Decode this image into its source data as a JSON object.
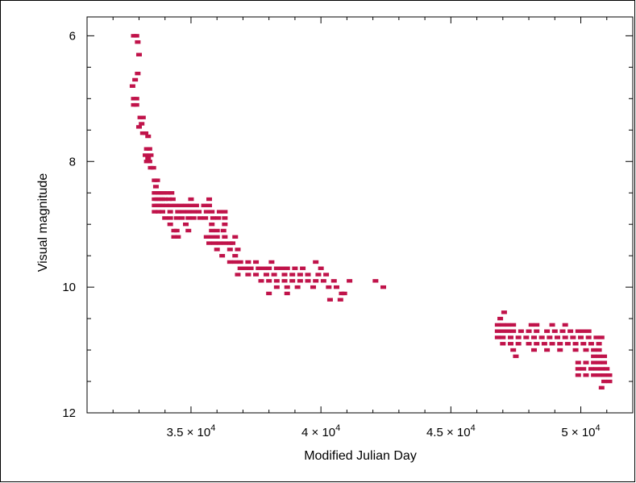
{
  "chart_data": {
    "type": "scatter",
    "xlabel": "Modified Julian Day",
    "ylabel": "Visual magnitude",
    "xlim": [
      31000,
      52000
    ],
    "ylim": [
      12,
      5.7
    ],
    "y_inverted": true,
    "grid": false,
    "marker_color": "#c0134a",
    "frame_color": "#000000",
    "xticks": [
      {
        "value": 35000,
        "mantissa": "3.5",
        "exponent": "4"
      },
      {
        "value": 40000,
        "mantissa": "4",
        "exponent": "4"
      },
      {
        "value": 45000,
        "mantissa": "4.5",
        "exponent": "4"
      },
      {
        "value": 50000,
        "mantissa": "5",
        "exponent": "4"
      }
    ],
    "yticks": [
      {
        "value": 6,
        "label": "6"
      },
      {
        "value": 8,
        "label": "8"
      },
      {
        "value": 10,
        "label": "10"
      },
      {
        "value": 12,
        "label": "12"
      }
    ],
    "series": [
      {
        "points": [
          [
            32800,
            6.0
          ],
          [
            32900,
            6.0
          ],
          [
            32950,
            6.1
          ],
          [
            33000,
            6.3
          ],
          [
            32850,
            6.7
          ],
          [
            32950,
            6.6
          ],
          [
            32750,
            6.8
          ],
          [
            32800,
            7.0
          ],
          [
            32900,
            7.0
          ],
          [
            32800,
            7.1
          ],
          [
            32900,
            7.1
          ],
          [
            33050,
            7.3
          ],
          [
            33150,
            7.3
          ],
          [
            33100,
            7.4
          ],
          [
            33000,
            7.45
          ],
          [
            33150,
            7.55
          ],
          [
            33250,
            7.55
          ],
          [
            33350,
            7.6
          ],
          [
            33300,
            7.8
          ],
          [
            33400,
            7.8
          ],
          [
            33250,
            7.9
          ],
          [
            33350,
            7.95
          ],
          [
            33450,
            7.9
          ],
          [
            33300,
            8.0
          ],
          [
            33400,
            8.0
          ],
          [
            33450,
            8.1
          ],
          [
            33550,
            8.1
          ],
          [
            33600,
            8.3
          ],
          [
            33700,
            8.3
          ],
          [
            33650,
            8.4
          ],
          [
            33750,
            8.5
          ],
          [
            33850,
            8.5
          ],
          [
            33950,
            8.5
          ],
          [
            34100,
            8.5
          ],
          [
            34250,
            8.5
          ],
          [
            33600,
            8.5
          ],
          [
            33600,
            8.6
          ],
          [
            33700,
            8.6
          ],
          [
            33800,
            8.6
          ],
          [
            33900,
            8.6
          ],
          [
            34000,
            8.6
          ],
          [
            34150,
            8.6
          ],
          [
            34300,
            8.6
          ],
          [
            35000,
            8.6
          ],
          [
            35700,
            8.6
          ],
          [
            33600,
            8.7
          ],
          [
            33700,
            8.7
          ],
          [
            33800,
            8.7
          ],
          [
            33900,
            8.7
          ],
          [
            34050,
            8.7
          ],
          [
            34200,
            8.7
          ],
          [
            34400,
            8.7
          ],
          [
            34600,
            8.7
          ],
          [
            34800,
            8.7
          ],
          [
            35000,
            8.7
          ],
          [
            35200,
            8.7
          ],
          [
            35500,
            8.7
          ],
          [
            35700,
            8.7
          ],
          [
            33600,
            8.8
          ],
          [
            33750,
            8.8
          ],
          [
            33900,
            8.8
          ],
          [
            34200,
            8.8
          ],
          [
            34500,
            8.8
          ],
          [
            34700,
            8.8
          ],
          [
            34900,
            8.8
          ],
          [
            35100,
            8.8
          ],
          [
            35300,
            8.8
          ],
          [
            35600,
            8.8
          ],
          [
            35800,
            8.8
          ],
          [
            36100,
            8.8
          ],
          [
            36300,
            8.8
          ],
          [
            34000,
            8.9
          ],
          [
            34200,
            8.9
          ],
          [
            34450,
            8.9
          ],
          [
            34650,
            8.9
          ],
          [
            34900,
            8.9
          ],
          [
            35100,
            8.9
          ],
          [
            35350,
            8.9
          ],
          [
            35550,
            8.9
          ],
          [
            35850,
            8.9
          ],
          [
            36050,
            8.9
          ],
          [
            36300,
            8.9
          ],
          [
            34200,
            9.0
          ],
          [
            34800,
            9.0
          ],
          [
            34900,
            9.1
          ],
          [
            35800,
            9.0
          ],
          [
            36300,
            9.0
          ],
          [
            34350,
            9.1
          ],
          [
            34450,
            9.1
          ],
          [
            35800,
            9.1
          ],
          [
            36000,
            9.1
          ],
          [
            36250,
            9.1
          ],
          [
            34350,
            9.2
          ],
          [
            34500,
            9.2
          ],
          [
            35600,
            9.2
          ],
          [
            35800,
            9.2
          ],
          [
            36000,
            9.2
          ],
          [
            36300,
            9.2
          ],
          [
            36700,
            9.2
          ],
          [
            36500,
            9.3
          ],
          [
            35700,
            9.3
          ],
          [
            35900,
            9.3
          ],
          [
            36100,
            9.3
          ],
          [
            36300,
            9.3
          ],
          [
            36600,
            9.3
          ],
          [
            36000,
            9.4
          ],
          [
            36500,
            9.4
          ],
          [
            36800,
            9.4
          ],
          [
            36200,
            9.5
          ],
          [
            36700,
            9.5
          ],
          [
            36500,
            9.6
          ],
          [
            36700,
            9.6
          ],
          [
            36900,
            9.6
          ],
          [
            37200,
            9.6
          ],
          [
            37500,
            9.6
          ],
          [
            38100,
            9.6
          ],
          [
            36900,
            9.7
          ],
          [
            37100,
            9.7
          ],
          [
            37300,
            9.7
          ],
          [
            37600,
            9.7
          ],
          [
            37800,
            9.7
          ],
          [
            38000,
            9.7
          ],
          [
            38300,
            9.7
          ],
          [
            38500,
            9.7
          ],
          [
            38700,
            9.7
          ],
          [
            39000,
            9.7
          ],
          [
            39300,
            9.7
          ],
          [
            39800,
            9.6
          ],
          [
            40000,
            9.7
          ],
          [
            36800,
            9.8
          ],
          [
            37200,
            9.8
          ],
          [
            37500,
            9.8
          ],
          [
            37900,
            9.8
          ],
          [
            38200,
            9.8
          ],
          [
            38600,
            9.8
          ],
          [
            38900,
            9.8
          ],
          [
            39200,
            9.8
          ],
          [
            39500,
            9.8
          ],
          [
            39900,
            9.8
          ],
          [
            40200,
            9.8
          ],
          [
            37700,
            9.9
          ],
          [
            38000,
            9.9
          ],
          [
            38300,
            9.9
          ],
          [
            38600,
            9.9
          ],
          [
            38900,
            9.9
          ],
          [
            39200,
            9.9
          ],
          [
            39500,
            9.9
          ],
          [
            39800,
            9.9
          ],
          [
            40100,
            9.9
          ],
          [
            40500,
            9.9
          ],
          [
            41100,
            9.9
          ],
          [
            38300,
            10.0
          ],
          [
            38700,
            10.0
          ],
          [
            39100,
            10.0
          ],
          [
            39700,
            10.0
          ],
          [
            40300,
            10.0
          ],
          [
            40600,
            10.0
          ],
          [
            38000,
            10.1
          ],
          [
            38700,
            10.1
          ],
          [
            40800,
            10.1
          ],
          [
            40900,
            10.1
          ],
          [
            40350,
            10.2
          ],
          [
            40750,
            10.2
          ],
          [
            42100,
            9.9
          ],
          [
            42400,
            10.0
          ],
          [
            46900,
            10.5
          ],
          [
            47050,
            10.4
          ],
          [
            46800,
            10.6
          ],
          [
            47000,
            10.6
          ],
          [
            47200,
            10.6
          ],
          [
            47400,
            10.6
          ],
          [
            48100,
            10.6
          ],
          [
            48300,
            10.6
          ],
          [
            48900,
            10.6
          ],
          [
            49400,
            10.6
          ],
          [
            46800,
            10.7
          ],
          [
            47000,
            10.7
          ],
          [
            47200,
            10.7
          ],
          [
            47400,
            10.7
          ],
          [
            47700,
            10.7
          ],
          [
            48000,
            10.7
          ],
          [
            48300,
            10.7
          ],
          [
            48700,
            10.7
          ],
          [
            49000,
            10.7
          ],
          [
            49300,
            10.7
          ],
          [
            49600,
            10.7
          ],
          [
            49900,
            10.7
          ],
          [
            50100,
            10.7
          ],
          [
            50300,
            10.7
          ],
          [
            46800,
            10.8
          ],
          [
            47000,
            10.8
          ],
          [
            47300,
            10.8
          ],
          [
            47600,
            10.8
          ],
          [
            47900,
            10.8
          ],
          [
            48200,
            10.8
          ],
          [
            48500,
            10.8
          ],
          [
            48800,
            10.8
          ],
          [
            49100,
            10.8
          ],
          [
            49400,
            10.8
          ],
          [
            49700,
            10.8
          ],
          [
            50000,
            10.8
          ],
          [
            50300,
            10.8
          ],
          [
            50600,
            10.8
          ],
          [
            50800,
            10.8
          ],
          [
            47000,
            10.9
          ],
          [
            47300,
            10.9
          ],
          [
            47600,
            10.9
          ],
          [
            48000,
            10.9
          ],
          [
            48300,
            10.9
          ],
          [
            48600,
            10.9
          ],
          [
            48900,
            10.9
          ],
          [
            49200,
            10.9
          ],
          [
            49500,
            10.9
          ],
          [
            49800,
            10.9
          ],
          [
            50100,
            10.9
          ],
          [
            50400,
            10.9
          ],
          [
            50700,
            10.9
          ],
          [
            47400,
            11.0
          ],
          [
            48200,
            11.0
          ],
          [
            48700,
            11.0
          ],
          [
            49200,
            11.0
          ],
          [
            49800,
            11.0
          ],
          [
            50200,
            11.0
          ],
          [
            50500,
            11.0
          ],
          [
            50700,
            11.0
          ],
          [
            47500,
            11.1
          ],
          [
            50500,
            11.1
          ],
          [
            50700,
            11.1
          ],
          [
            50900,
            11.1
          ],
          [
            49900,
            11.2
          ],
          [
            50200,
            11.2
          ],
          [
            50500,
            11.2
          ],
          [
            50700,
            11.2
          ],
          [
            50900,
            11.2
          ],
          [
            49900,
            11.3
          ],
          [
            50100,
            11.3
          ],
          [
            50400,
            11.3
          ],
          [
            50600,
            11.3
          ],
          [
            50800,
            11.3
          ],
          [
            51000,
            11.3
          ],
          [
            49900,
            11.4
          ],
          [
            50200,
            11.4
          ],
          [
            50500,
            11.4
          ],
          [
            50700,
            11.4
          ],
          [
            50900,
            11.4
          ],
          [
            51100,
            11.4
          ],
          [
            50900,
            11.5
          ],
          [
            51100,
            11.5
          ],
          [
            50800,
            11.6
          ]
        ]
      }
    ]
  }
}
